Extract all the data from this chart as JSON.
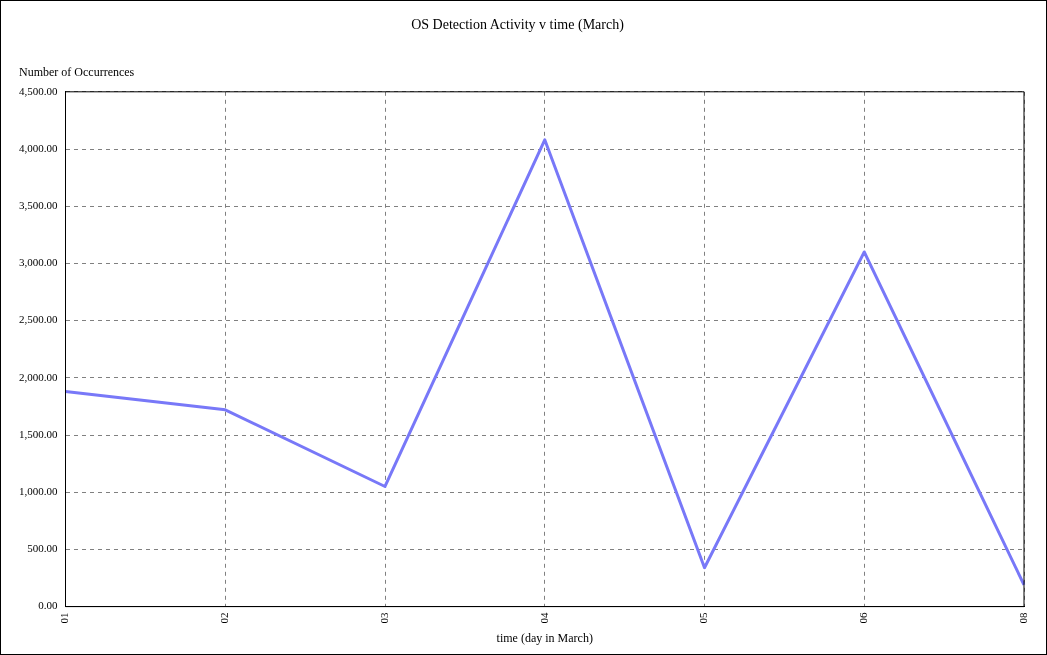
{
  "chart_data": {
    "type": "line",
    "title": "OS Detection Activity v time (March)",
    "xlabel": "time (day in March)",
    "ylabel": "Number of Occurrences",
    "categories": [
      "01",
      "02",
      "03",
      "04",
      "05",
      "06",
      "08"
    ],
    "series": [
      {
        "color": "#7878f8",
        "values": [
          1880,
          1720,
          1050,
          4080,
          340,
          3100,
          190
        ]
      }
    ],
    "ylim": [
      0,
      4500
    ],
    "yticks": [
      {
        "value": 0,
        "label": "0.00"
      },
      {
        "value": 500,
        "label": "500.00"
      },
      {
        "value": 1000,
        "label": "1,000.00"
      },
      {
        "value": 1500,
        "label": "1,500.00"
      },
      {
        "value": 2000,
        "label": "2,000.00"
      },
      {
        "value": 2500,
        "label": "2,500.00"
      },
      {
        "value": 3000,
        "label": "3,000.00"
      },
      {
        "value": 3500,
        "label": "3,500.00"
      },
      {
        "value": 4000,
        "label": "4,000.00"
      },
      {
        "value": 4500,
        "label": "4,500.00"
      }
    ],
    "grid": true,
    "legend": false,
    "marker": "none",
    "line_style": "solid"
  }
}
